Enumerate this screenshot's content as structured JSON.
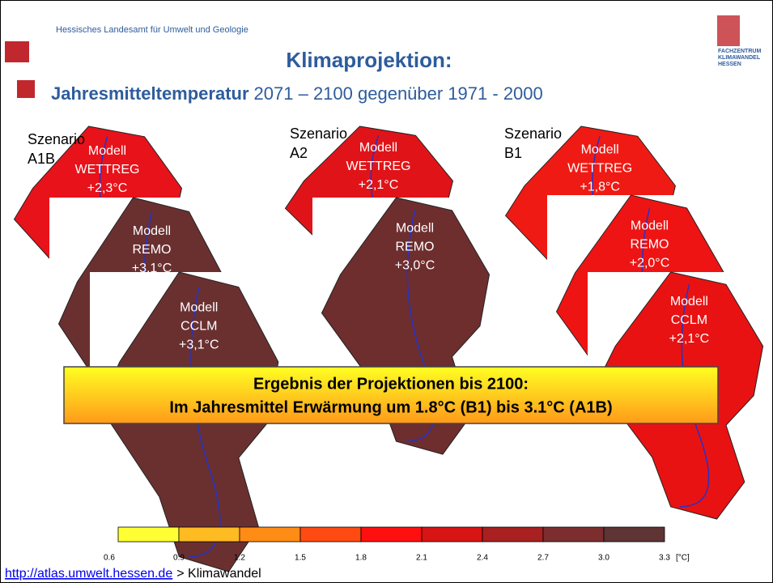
{
  "header": {
    "org": "Hessisches Landesamt für Umwelt und Geologie",
    "title": "Klimaprojektion:",
    "subtitle_bold": "Jahresmitteltemperatur",
    "subtitle_rest": "2071 – 2100 gegenüber 1971 - 2000",
    "logo": [
      "FACHZENTRUM",
      "KLIMAWANDEL",
      "HESSEN"
    ]
  },
  "scenarios": [
    {
      "label": [
        "Szenario",
        "A1B"
      ],
      "models": [
        {
          "prefix": "Modell",
          "name": "WETTREG",
          "value": "+2,3°C",
          "color": "#e8121a"
        },
        {
          "prefix": "Modell",
          "name": "REMO",
          "value": "+3,1°C",
          "color": "#6a3030"
        },
        {
          "prefix": "Modell",
          "name": "CCLM",
          "value": "+3,1°C",
          "color": "#6a3030"
        }
      ]
    },
    {
      "label": [
        "Szenario",
        "A2"
      ],
      "models": [
        {
          "prefix": "Modell",
          "name": "WETTREG",
          "value": "+2,1°C",
          "color": "#e01418"
        },
        {
          "prefix": "Modell",
          "name": "REMO",
          "value": "+3,0°C",
          "color": "#6e2e2e"
        }
      ]
    },
    {
      "label": [
        "Szenario",
        "B1"
      ],
      "models": [
        {
          "prefix": "Modell",
          "name": "WETTREG",
          "value": "+1,8°C",
          "color": "#f01a14"
        },
        {
          "prefix": "Modell",
          "name": "REMO",
          "value": "+2,0°C",
          "color": "#ee1414"
        },
        {
          "prefix": "Modell",
          "name": "CCLM",
          "value": "+2,1°C",
          "color": "#e81212"
        }
      ]
    }
  ],
  "result": {
    "line1": "Ergebnis der Projektionen bis 2100:",
    "line2": "Im Jahresmittel Erwärmung um 1.8°C (B1) bis 3.1°C (A1B)"
  },
  "colorbar": {
    "ticks": [
      "0.6",
      "0.9",
      "1.2",
      "1.5",
      "1.8",
      "2.1",
      "2.4",
      "2.7",
      "3.0",
      "3.3"
    ],
    "unit": "[°C]",
    "colors": [
      "#ffff33",
      "#ffbb22",
      "#ff8c14",
      "#ff4a12",
      "#ff1010",
      "#d81414",
      "#a82020",
      "#7c2e2e",
      "#5e3434"
    ]
  },
  "footer": {
    "link": "http://atlas.umwelt.hessen.de",
    "rest": "> Klimawandel"
  }
}
